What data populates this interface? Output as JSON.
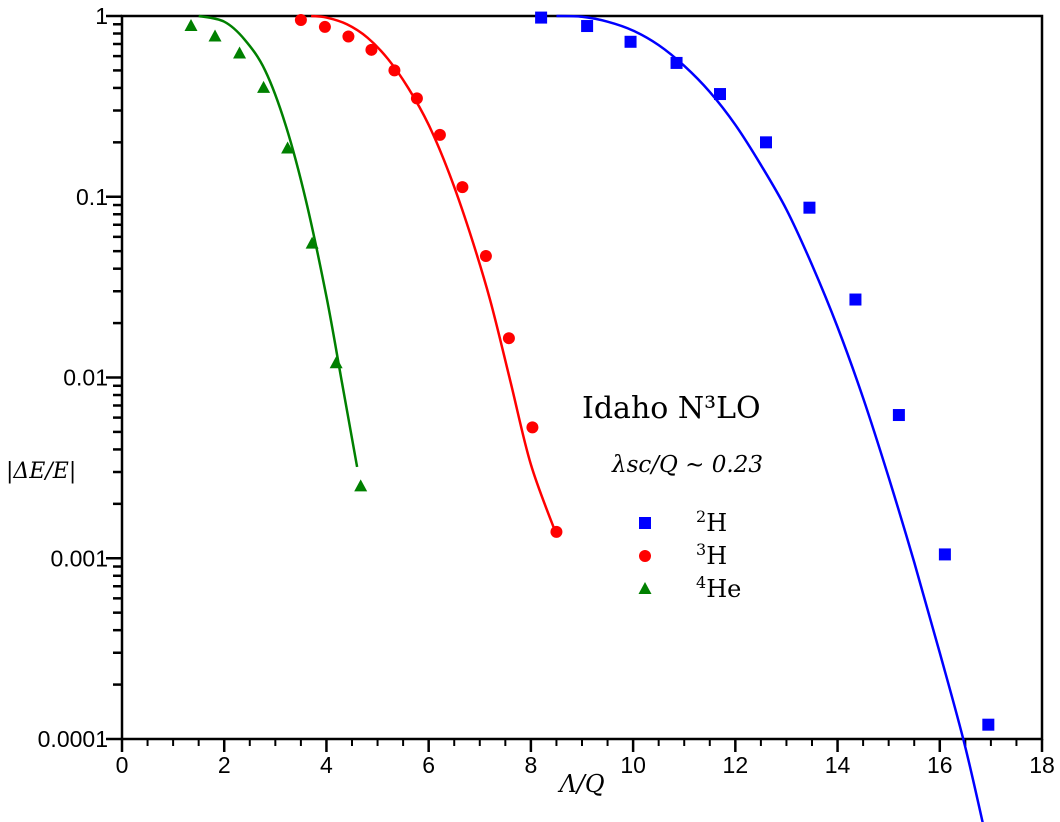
{
  "chart_data": {
    "type": "scatter",
    "xlabel": "Λ/Q",
    "ylabel": "|ΔE/E|",
    "xlim": [
      0,
      18
    ],
    "ylim": [
      0.0001,
      1
    ],
    "yscale": "log",
    "x_ticks": [
      "0",
      "2",
      "4",
      "6",
      "8",
      "10",
      "12",
      "14",
      "16",
      "18"
    ],
    "y_ticks": [
      "0.0001",
      "0.001",
      "0.01",
      "0.1",
      "1"
    ],
    "annotation_title": "Idaho N³LO",
    "annotation_subtitle": "λsc/Q ∼ 0.23",
    "legend_position": "center-right",
    "series": [
      {
        "name": "²H",
        "legend_prefix": "2",
        "legend_base": "H",
        "color": "#0000ff",
        "marker": "square",
        "x": [
          8.2,
          9.1,
          9.95,
          10.85,
          11.7,
          12.6,
          13.45,
          14.35,
          15.2,
          16.1,
          16.95
        ],
        "y": [
          0.98,
          0.88,
          0.72,
          0.55,
          0.37,
          0.2,
          0.087,
          0.027,
          0.0062,
          0.00105,
          0.00012
        ],
        "fit_x": [
          8.5,
          9.0,
          9.5,
          10.0,
          10.5,
          11.0,
          11.5,
          12.0,
          12.5,
          13.0,
          13.5,
          14.0,
          14.5,
          15.0,
          15.5,
          16.0,
          16.5,
          16.95
        ],
        "fit_y": [
          1.0,
          0.99,
          0.93,
          0.83,
          0.69,
          0.53,
          0.38,
          0.25,
          0.15,
          0.085,
          0.042,
          0.019,
          0.0077,
          0.0028,
          0.00095,
          0.0003,
          9e-05,
          2.5e-05
        ]
      },
      {
        "name": "³H",
        "legend_prefix": "3",
        "legend_base": "H",
        "color": "#ff0000",
        "marker": "circle",
        "x": [
          3.5,
          3.97,
          4.43,
          4.88,
          5.33,
          5.77,
          6.22,
          6.66,
          7.12,
          7.57,
          8.03,
          8.5
        ],
        "y": [
          0.95,
          0.87,
          0.77,
          0.65,
          0.5,
          0.35,
          0.22,
          0.113,
          0.047,
          0.0165,
          0.0053,
          0.0014
        ],
        "fit_x": [
          3.7,
          4.0,
          4.4,
          4.8,
          5.2,
          5.6,
          6.0,
          6.4,
          6.8,
          7.2,
          7.6,
          8.0,
          8.5
        ],
        "fit_y": [
          1.0,
          0.98,
          0.9,
          0.76,
          0.58,
          0.4,
          0.25,
          0.135,
          0.064,
          0.027,
          0.0095,
          0.0033,
          0.00135
        ]
      },
      {
        "name": "⁴He",
        "legend_prefix": "4",
        "legend_base": "He",
        "color": "#008000",
        "marker": "triangle",
        "x": [
          1.35,
          1.82,
          2.3,
          2.77,
          3.24,
          3.72,
          4.19,
          4.67
        ],
        "y": [
          0.88,
          0.77,
          0.62,
          0.4,
          0.185,
          0.055,
          0.012,
          0.0025
        ],
        "fit_x": [
          1.5,
          2.0,
          2.4,
          2.8,
          3.2,
          3.6,
          4.0,
          4.3,
          4.6
        ],
        "fit_y": [
          1.0,
          0.93,
          0.74,
          0.5,
          0.25,
          0.095,
          0.028,
          0.0095,
          0.0032
        ]
      }
    ]
  }
}
